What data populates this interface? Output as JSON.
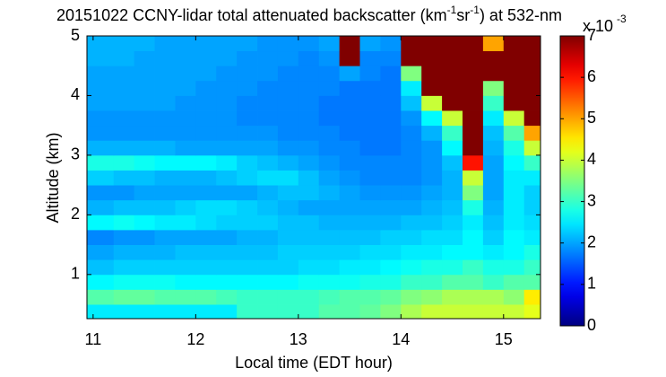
{
  "chart_data": {
    "type": "heatmap",
    "title": [
      {
        "text": "20151022 CCNY-lidar total attenuated backscatter (km",
        "superscript": false
      },
      {
        "text": "-1",
        "superscript": true
      },
      {
        "text": "sr",
        "superscript": false
      },
      {
        "text": "-1",
        "superscript": true
      },
      {
        "text": ") at 532-nm",
        "superscript": false
      }
    ],
    "x_label": "Local time (EDT hour)",
    "y_label": "Altitude (km)",
    "colorbar_label": "x 10",
    "colorbar_exponent": "-3",
    "colormap": "jet",
    "clim": [
      0,
      7
    ],
    "cticks": [
      0,
      1,
      2,
      3,
      4,
      5,
      6,
      7
    ],
    "xlim": [
      10.94,
      15.36
    ],
    "ylim": [
      0.26,
      5
    ],
    "xticks": [
      11,
      12,
      13,
      14,
      15
    ],
    "yticks": [
      1,
      2,
      3,
      4,
      5
    ],
    "x_edges": [
      10.94,
      11.2,
      11.4,
      11.6,
      11.8,
      12.0,
      12.2,
      12.4,
      12.6,
      12.8,
      13.0,
      13.2,
      13.4,
      13.6,
      13.8,
      14.0,
      14.2,
      14.4,
      14.6,
      14.8,
      15.0,
      15.2,
      15.36
    ],
    "y_edges": [
      0.26,
      0.5,
      0.75,
      1.0,
      1.25,
      1.5,
      1.75,
      2.0,
      2.25,
      2.5,
      2.75,
      3.0,
      3.25,
      3.5,
      3.75,
      4.0,
      4.25,
      4.5,
      4.75,
      5.0
    ],
    "values": [
      [
        2.5,
        2.5,
        2.5,
        2.5,
        2.5,
        2.5,
        2.5,
        3.0,
        3.0,
        3.0,
        3.0,
        3.2,
        3.2,
        3.3,
        3.5,
        3.8,
        4.0,
        4.0,
        4.0,
        4.0,
        4.0,
        4.2
      ],
      [
        3.2,
        3.3,
        3.3,
        3.2,
        3.2,
        3.2,
        3.1,
        3.0,
        3.0,
        3.0,
        3.0,
        3.1,
        3.2,
        3.2,
        3.3,
        3.5,
        3.6,
        3.8,
        3.8,
        3.8,
        3.6,
        4.5
      ],
      [
        2.6,
        2.7,
        2.7,
        2.7,
        2.6,
        2.6,
        2.6,
        2.6,
        2.6,
        2.6,
        2.7,
        2.7,
        2.7,
        2.8,
        2.8,
        3.0,
        3.0,
        3.2,
        3.2,
        3.0,
        3.2,
        3.2
      ],
      [
        2.2,
        2.3,
        2.3,
        2.3,
        2.3,
        2.3,
        2.3,
        2.3,
        2.3,
        2.3,
        2.4,
        2.4,
        2.5,
        2.5,
        2.6,
        2.7,
        2.8,
        2.8,
        3.0,
        2.8,
        2.8,
        3.0
      ],
      [
        2.0,
        2.1,
        2.1,
        2.1,
        2.2,
        2.2,
        2.2,
        2.2,
        2.2,
        2.3,
        2.3,
        2.3,
        2.3,
        2.4,
        2.4,
        2.5,
        2.5,
        2.6,
        2.6,
        2.5,
        2.6,
        2.8
      ],
      [
        1.8,
        1.9,
        1.9,
        2.0,
        2.0,
        2.0,
        2.0,
        2.1,
        2.1,
        2.2,
        2.2,
        2.2,
        2.2,
        2.2,
        2.3,
        2.3,
        2.4,
        2.4,
        2.6,
        2.3,
        2.6,
        2.5
      ],
      [
        2.6,
        2.7,
        2.6,
        2.5,
        2.5,
        2.4,
        2.3,
        2.3,
        2.3,
        2.2,
        2.2,
        2.1,
        2.1,
        2.1,
        2.1,
        2.2,
        2.2,
        2.3,
        2.5,
        2.2,
        2.5,
        2.4
      ],
      [
        2.1,
        2.2,
        2.2,
        2.2,
        2.3,
        2.4,
        2.4,
        2.3,
        2.2,
        2.1,
        2.0,
        2.0,
        2.0,
        2.0,
        2.0,
        2.0,
        2.1,
        2.2,
        2.8,
        2.1,
        2.5,
        2.3
      ],
      [
        1.9,
        1.9,
        2.0,
        2.0,
        2.0,
        2.0,
        2.0,
        2.0,
        2.1,
        2.2,
        2.2,
        2.1,
        2.0,
        1.9,
        1.9,
        1.9,
        2.0,
        2.1,
        3.5,
        2.0,
        2.5,
        2.3
      ],
      [
        2.3,
        2.2,
        2.2,
        2.1,
        2.1,
        2.1,
        2.2,
        2.3,
        2.4,
        2.4,
        2.2,
        2.0,
        1.9,
        1.8,
        1.8,
        1.8,
        1.9,
        2.1,
        4.0,
        2.0,
        2.5,
        2.5
      ],
      [
        2.8,
        2.8,
        2.7,
        2.6,
        2.6,
        2.6,
        2.5,
        2.3,
        2.2,
        2.1,
        2.0,
        1.9,
        1.8,
        1.8,
        1.8,
        1.8,
        1.9,
        2.2,
        6.0,
        2.0,
        2.6,
        3.0
      ],
      [
        2.1,
        2.1,
        2.1,
        2.1,
        2.0,
        2.0,
        2.0,
        2.0,
        2.0,
        1.9,
        1.9,
        1.8,
        1.8,
        1.7,
        1.7,
        1.8,
        1.9,
        2.6,
        7.0,
        2.1,
        2.8,
        4.0
      ],
      [
        1.9,
        1.9,
        1.9,
        1.9,
        1.9,
        1.9,
        1.9,
        1.9,
        1.9,
        1.8,
        1.8,
        1.8,
        1.7,
        1.7,
        1.7,
        1.8,
        2.1,
        3.0,
        7.0,
        2.2,
        3.2,
        5.0
      ],
      [
        1.9,
        1.9,
        1.9,
        1.9,
        1.9,
        1.9,
        1.9,
        1.8,
        1.8,
        1.8,
        1.8,
        1.7,
        1.7,
        1.7,
        1.7,
        1.9,
        2.6,
        4.0,
        7.0,
        2.5,
        4.0,
        7.0
      ],
      [
        2.0,
        2.0,
        2.0,
        2.0,
        1.9,
        1.9,
        1.9,
        1.8,
        1.8,
        1.8,
        1.8,
        1.7,
        1.7,
        1.7,
        1.7,
        2.2,
        4.0,
        7.0,
        7.0,
        3.0,
        7.0,
        7.0
      ],
      [
        2.0,
        2.0,
        2.0,
        2.0,
        2.0,
        1.9,
        1.9,
        1.9,
        1.8,
        1.8,
        1.8,
        1.8,
        1.7,
        1.7,
        1.7,
        2.5,
        7.0,
        7.0,
        7.0,
        3.5,
        7.0,
        7.0
      ],
      [
        2.0,
        2.0,
        2.0,
        2.0,
        2.0,
        2.0,
        1.9,
        1.9,
        1.9,
        1.8,
        1.8,
        1.8,
        2.0,
        1.8,
        1.7,
        3.5,
        7.0,
        7.0,
        7.0,
        7.0,
        7.0,
        7.0
      ],
      [
        2.1,
        2.1,
        2.0,
        2.0,
        2.0,
        2.0,
        2.0,
        1.9,
        1.9,
        1.9,
        1.8,
        1.9,
        7.0,
        1.8,
        1.8,
        7.0,
        7.0,
        7.0,
        7.0,
        7.0,
        7.0,
        7.0
      ],
      [
        2.1,
        2.1,
        2.1,
        2.0,
        2.0,
        2.0,
        2.0,
        2.0,
        1.9,
        1.9,
        1.9,
        2.0,
        7.0,
        2.0,
        1.9,
        7.0,
        7.0,
        7.0,
        7.0,
        5.0,
        7.0,
        7.0
      ]
    ]
  }
}
